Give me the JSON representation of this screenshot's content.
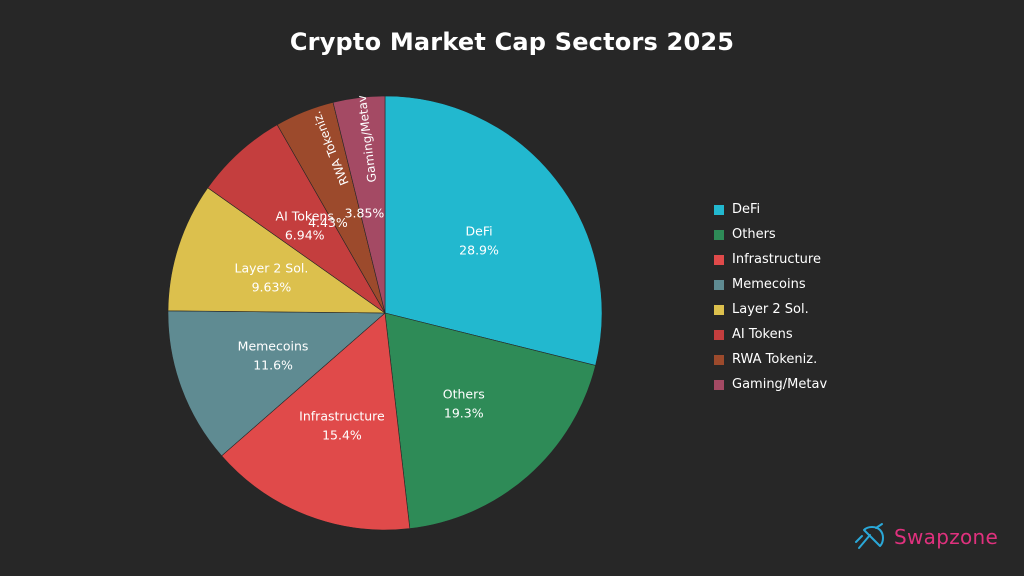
{
  "chart_data": {
    "type": "pie",
    "title": "Crypto Market Cap Sectors 2025",
    "slices": [
      {
        "label": "DeFi",
        "value": 28.9,
        "display": "28.9%",
        "color": "#22b8cf"
      },
      {
        "label": "Others",
        "value": 19.3,
        "display": "19.3%",
        "color": "#2e8b57"
      },
      {
        "label": "Infrastructure",
        "value": 15.4,
        "display": "15.4%",
        "color": "#e04a4a"
      },
      {
        "label": "Memecoins",
        "value": 11.6,
        "display": "11.6%",
        "color": "#5f8b92"
      },
      {
        "label": "Layer 2 Sol.",
        "value": 9.63,
        "display": "9.63%",
        "color": "#dcc04d"
      },
      {
        "label": "AI Tokens",
        "value": 6.94,
        "display": "6.94%",
        "color": "#c43e3e"
      },
      {
        "label": "RWA Tokeniz.",
        "value": 4.43,
        "display": "4.43%",
        "color": "#9c4a2c"
      },
      {
        "label": "Gaming/Metav",
        "value": 3.85,
        "display": "3.85%",
        "color": "#a44a64"
      }
    ],
    "legend_position": "right",
    "start_angle_deg": 90,
    "direction": "clockwise"
  },
  "brand": {
    "name": "Swapzone",
    "icon": "satellite-icon",
    "color": "#e0317e"
  }
}
